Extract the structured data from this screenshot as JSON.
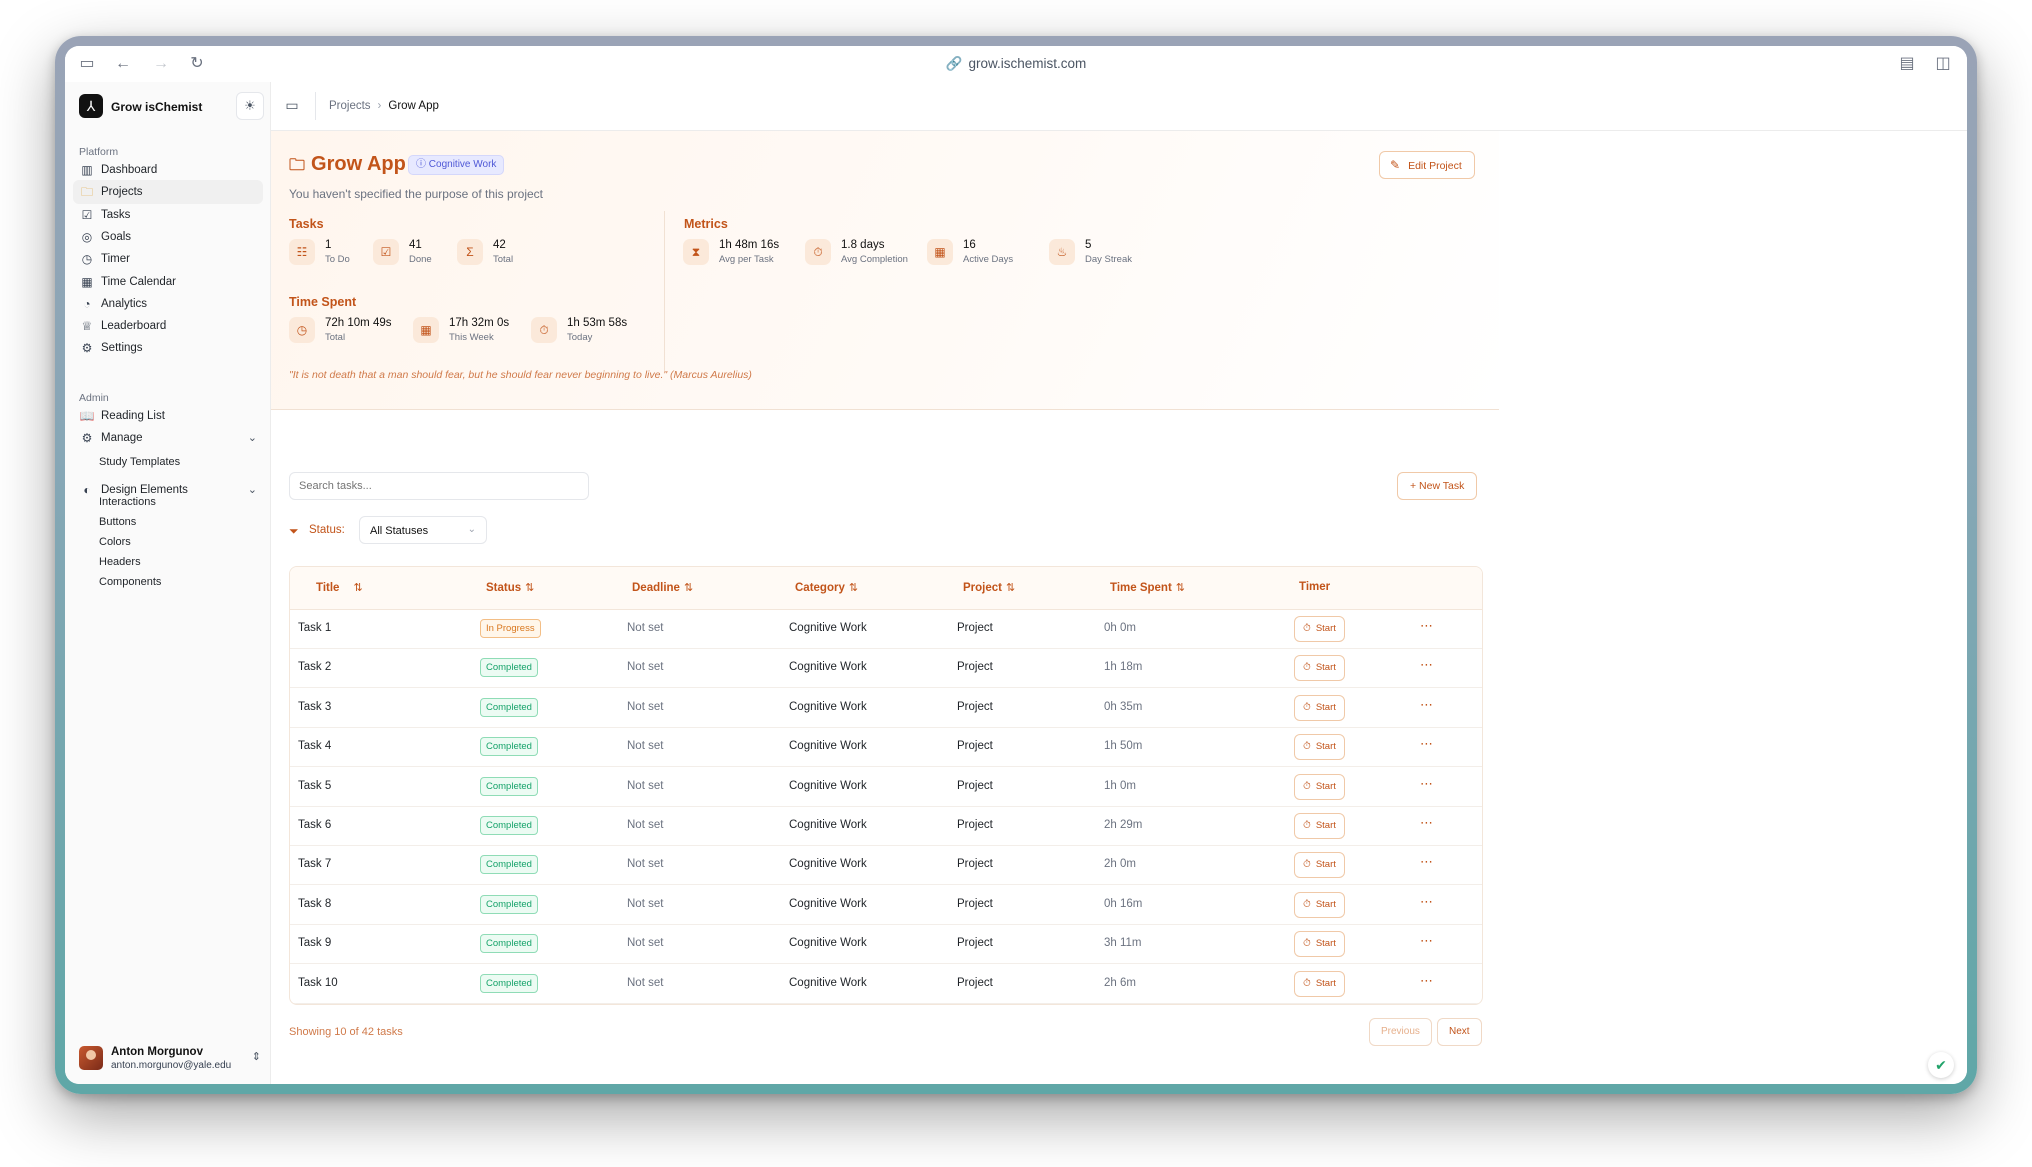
{
  "browser": {
    "url": "grow.ischemist.com"
  },
  "sidebar": {
    "app_name": "Grow isChemist",
    "platform_label": "Platform",
    "platform_items": [
      {
        "label": "Dashboard",
        "icon": "bar-chart-icon"
      },
      {
        "label": "Projects",
        "icon": "folder-icon"
      },
      {
        "label": "Tasks",
        "icon": "check-square-icon"
      },
      {
        "label": "Goals",
        "icon": "target-icon"
      },
      {
        "label": "Timer",
        "icon": "clock-icon"
      },
      {
        "label": "Time Calendar",
        "icon": "calendar-icon"
      },
      {
        "label": "Analytics",
        "icon": "pie-chart-icon"
      },
      {
        "label": "Leaderboard",
        "icon": "trophy-icon"
      },
      {
        "label": "Settings",
        "icon": "gear-icon"
      }
    ],
    "admin_label": "Admin",
    "admin_items": [
      {
        "label": "Reading List",
        "icon": "book-icon"
      },
      {
        "label": "Manage",
        "icon": "gear-icon"
      },
      {
        "label": "Design Elements",
        "icon": "palette-icon"
      }
    ],
    "manage_sub": [
      "Study Templates"
    ],
    "design_sub": [
      "Interactions",
      "Buttons",
      "Colors",
      "Headers",
      "Components"
    ],
    "user": {
      "name": "Anton Morgunov",
      "email": "anton.morgunov@yale.edu"
    }
  },
  "header": {
    "breadcrumb_parent": "Projects",
    "breadcrumb_current": "Grow App"
  },
  "project": {
    "title": "Grow App",
    "category": "Cognitive Work",
    "description": "You haven't specified the purpose of this project",
    "edit_label": "Edit Project",
    "tasks_title": "Tasks",
    "tasks_stats": [
      {
        "value": "1",
        "label": "To Do",
        "icon": "list-icon"
      },
      {
        "value": "41",
        "label": "Done",
        "icon": "check-square-icon"
      },
      {
        "value": "42",
        "label": "Total",
        "icon": "sigma-icon"
      }
    ],
    "time_title": "Time Spent",
    "time_stats": [
      {
        "value": "72h 10m 49s",
        "label": "Total",
        "icon": "clock-icon"
      },
      {
        "value": "17h 32m 0s",
        "label": "This Week",
        "icon": "calendar-icon"
      },
      {
        "value": "1h 53m 58s",
        "label": "Today",
        "icon": "timer-icon"
      }
    ],
    "metrics_title": "Metrics",
    "metrics_stats": [
      {
        "value": "1h 48m 16s",
        "label": "Avg per Task",
        "icon": "hourglass-icon"
      },
      {
        "value": "1.8 days",
        "label": "Avg Completion",
        "icon": "timer-icon"
      },
      {
        "value": "16",
        "label": "Active Days",
        "icon": "calendar-icon"
      },
      {
        "value": "5",
        "label": "Day Streak",
        "icon": "flame-icon"
      }
    ],
    "quote": "\"It is not death that a man should fear, but he should fear never beginning to live.\" (Marcus Aurelius)"
  },
  "controls": {
    "search_placeholder": "Search tasks...",
    "new_task_label": "+ New Task",
    "status_label": "Status:",
    "status_value": "All Statuses"
  },
  "table": {
    "columns": [
      "Title",
      "Status",
      "Deadline",
      "Category",
      "Project",
      "Time Spent",
      "Timer"
    ],
    "start_label": "Start",
    "rows": [
      {
        "title": "Task 1",
        "status": "In Progress",
        "deadline": "Not set",
        "category": "Cognitive Work",
        "project": "Project",
        "time": "0h 0m"
      },
      {
        "title": "Task 2",
        "status": "Completed",
        "deadline": "Not set",
        "category": "Cognitive Work",
        "project": "Project",
        "time": "1h 18m"
      },
      {
        "title": "Task 3",
        "status": "Completed",
        "deadline": "Not set",
        "category": "Cognitive Work",
        "project": "Project",
        "time": "0h 35m"
      },
      {
        "title": "Task 4",
        "status": "Completed",
        "deadline": "Not set",
        "category": "Cognitive Work",
        "project": "Project",
        "time": "1h 50m"
      },
      {
        "title": "Task 5",
        "status": "Completed",
        "deadline": "Not set",
        "category": "Cognitive Work",
        "project": "Project",
        "time": "1h 0m"
      },
      {
        "title": "Task 6",
        "status": "Completed",
        "deadline": "Not set",
        "category": "Cognitive Work",
        "project": "Project",
        "time": "2h 29m"
      },
      {
        "title": "Task 7",
        "status": "Completed",
        "deadline": "Not set",
        "category": "Cognitive Work",
        "project": "Project",
        "time": "2h 0m"
      },
      {
        "title": "Task 8",
        "status": "Completed",
        "deadline": "Not set",
        "category": "Cognitive Work",
        "project": "Project",
        "time": "0h 16m"
      },
      {
        "title": "Task 9",
        "status": "Completed",
        "deadline": "Not set",
        "category": "Cognitive Work",
        "project": "Project",
        "time": "3h 11m"
      },
      {
        "title": "Task 10",
        "status": "Completed",
        "deadline": "Not set",
        "category": "Cognitive Work",
        "project": "Project",
        "time": "2h 6m"
      }
    ]
  },
  "pagination": {
    "summary": "Showing 10 of 42 tasks",
    "previous": "Previous",
    "next": "Next"
  },
  "colors": {
    "accent": "#c2541a",
    "completed": "#16a36a",
    "in_progress": "#d9781f"
  }
}
